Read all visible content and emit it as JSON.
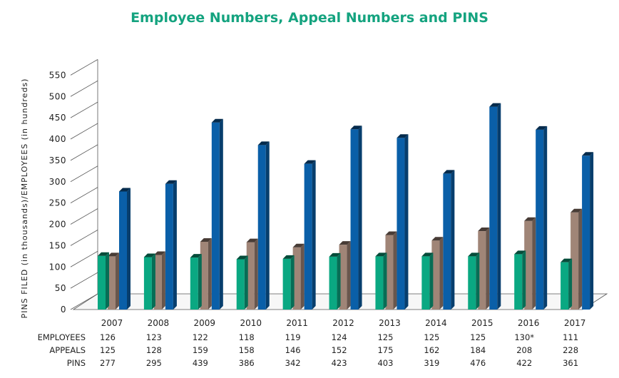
{
  "chart_data": {
    "type": "bar",
    "title": "Employee Numbers, Appeal Numbers and PINS",
    "ylabel": "PINS FILED (in thousands)/EMPLOYEES (in hundreds)",
    "ylim": [
      0,
      550
    ],
    "yticks": [
      0,
      50,
      100,
      150,
      200,
      250,
      300,
      350,
      400,
      450,
      500,
      550
    ],
    "categories": [
      "2007",
      "2008",
      "2009",
      "2010",
      "2011",
      "2012",
      "2013",
      "2014",
      "2015",
      "2016",
      "2017"
    ],
    "series": [
      {
        "name": "EMPLOYEES",
        "color": "#0aa882",
        "values": [
          126,
          123,
          122,
          118,
          119,
          124,
          125,
          125,
          125,
          130,
          111
        ],
        "labels": [
          "126",
          "123",
          "122",
          "118",
          "119",
          "124",
          "125",
          "125",
          "125",
          "130*",
          "111"
        ]
      },
      {
        "name": "APPEALS",
        "color": "#a08577",
        "values": [
          125,
          128,
          159,
          158,
          146,
          152,
          175,
          162,
          184,
          208,
          228
        ],
        "labels": [
          "125",
          "128",
          "159",
          "158",
          "146",
          "152",
          "175",
          "162",
          "184",
          "208",
          "228"
        ]
      },
      {
        "name": "PINS",
        "color": "#0a5fa8",
        "values": [
          277,
          295,
          439,
          386,
          342,
          423,
          403,
          319,
          476,
          422,
          361
        ],
        "labels": [
          "277",
          "295",
          "439",
          "386",
          "342",
          "423",
          "403",
          "319",
          "476",
          "422",
          "361"
        ]
      }
    ],
    "grid": false,
    "legend": "table below chart"
  }
}
